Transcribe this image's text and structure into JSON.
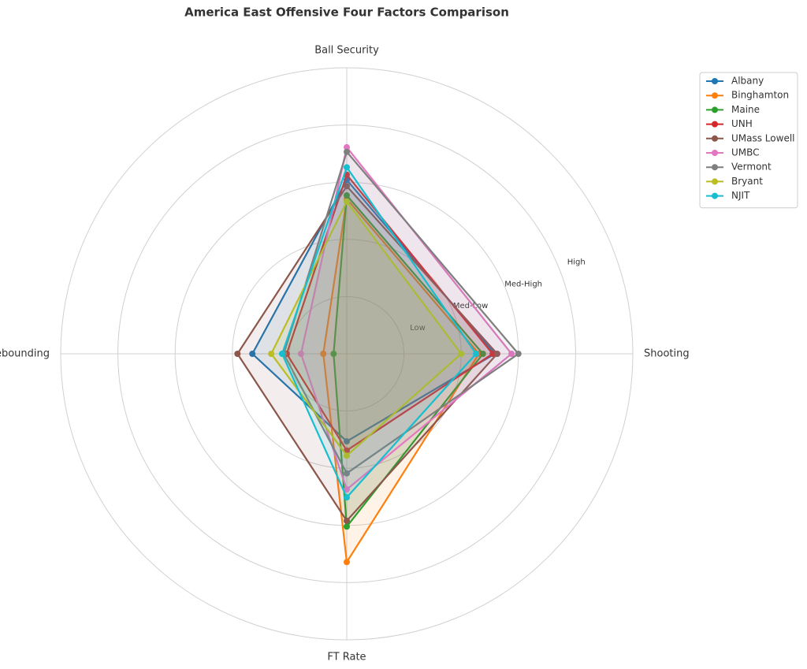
{
  "chart_data": {
    "type": "radar",
    "title": "America East Offensive Four Factors Comparison",
    "categories": [
      "Shooting",
      "Ball Security",
      "Off Rebounding",
      "FT Rate"
    ],
    "ylim": [
      0,
      5
    ],
    "yticks": [
      {
        "value": 1,
        "label": "Low"
      },
      {
        "value": 2,
        "label": "Med-Low"
      },
      {
        "value": 3,
        "label": "Med-High"
      },
      {
        "value": 4,
        "label": "High"
      }
    ],
    "grid": true,
    "legend": "upper right",
    "series": [
      {
        "name": "Albany",
        "color": "#1f77b4",
        "values": [
          2.59,
          3.04,
          1.65,
          1.53
        ]
      },
      {
        "name": "Binghamton",
        "color": "#ff7f0e",
        "values": [
          2.31,
          2.71,
          0.41,
          3.64
        ]
      },
      {
        "name": "Maine",
        "color": "#2ca02c",
        "values": [
          2.38,
          2.77,
          0.23,
          3.02
        ]
      },
      {
        "name": "UNH",
        "color": "#d62728",
        "values": [
          2.55,
          3.13,
          1.05,
          1.69
        ]
      },
      {
        "name": "UMass Lowell",
        "color": "#8c564b",
        "values": [
          2.63,
          2.93,
          1.91,
          2.92
        ]
      },
      {
        "name": "UMBC",
        "color": "#e377c2",
        "values": [
          2.88,
          3.61,
          0.8,
          2.37
        ]
      },
      {
        "name": "Vermont",
        "color": "#7f7f7f",
        "values": [
          3.0,
          3.53,
          1.1,
          2.09
        ]
      },
      {
        "name": "Bryant",
        "color": "#bcbd22",
        "values": [
          2.0,
          2.66,
          1.32,
          1.78
        ]
      },
      {
        "name": "NJIT",
        "color": "#17becf",
        "values": [
          2.26,
          3.26,
          1.13,
          2.51
        ]
      }
    ]
  }
}
